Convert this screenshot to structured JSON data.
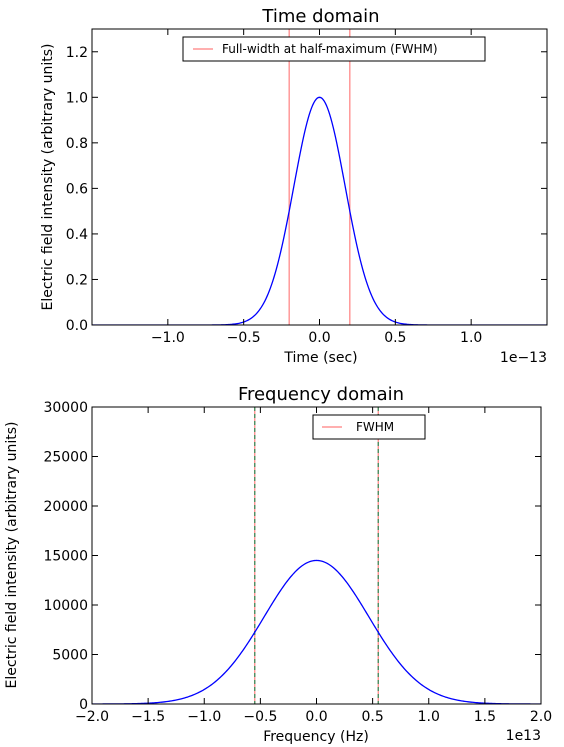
{
  "chart_data": [
    {
      "type": "line",
      "title": "Time domain",
      "xlabel": "Time (sec)",
      "ylabel": "Electric field intensity (arbitrary units)",
      "x_offset_label": "1e−13",
      "xlim": [
        -1.5e-13,
        1.5e-13
      ],
      "ylim": [
        0,
        1.3
      ],
      "xticks": [
        -1e-13,
        -5e-14,
        0,
        5e-14,
        1e-13
      ],
      "xtick_labels": [
        "−1.0",
        "−0.5",
        "0.0",
        "0.5",
        "1.0"
      ],
      "yticks": [
        0,
        0.2,
        0.4,
        0.6,
        0.8,
        1.0,
        1.2
      ],
      "ytick_labels": [
        "0.0",
        "0.2",
        "0.4",
        "0.6",
        "0.8",
        "1.0",
        "1.2"
      ],
      "series": [
        {
          "kind": "gaussian",
          "color": "#0000ff",
          "amplitude": 1.0,
          "center": 0,
          "fwhm": 4e-14
        }
      ],
      "vlines": [
        {
          "x": -2e-14,
          "color": "#ff7f7f"
        },
        {
          "x": 2e-14,
          "color": "#ff7f7f"
        }
      ],
      "legend": {
        "placement": "top-center",
        "entries": [
          {
            "label": "Full-width at half-maximum (FWHM)",
            "color": "#ff7f7f"
          }
        ]
      },
      "grid": false
    },
    {
      "type": "line",
      "title": "Frequency domain",
      "xlabel": "Frequency (Hz)",
      "ylabel": "Electric field intensity (arbitrary units)",
      "x_offset_label": "1e13",
      "xlim": [
        -20000000000000.0,
        20000000000000.0
      ],
      "ylim": [
        0,
        30000
      ],
      "xticks": [
        -20000000000000.0,
        -15000000000000.0,
        -10000000000000.0,
        -5000000000000.0,
        0,
        5000000000000.0,
        10000000000000.0,
        15000000000000.0,
        20000000000000.0
      ],
      "xtick_labels": [
        "−2.0",
        "−1.5",
        "−1.0",
        "−0.5",
        "0.0",
        "0.5",
        "1.0",
        "1.5",
        "2.0"
      ],
      "yticks": [
        0,
        5000,
        10000,
        15000,
        20000,
        25000,
        30000
      ],
      "ytick_labels": [
        "0",
        "5000",
        "10000",
        "15000",
        "20000",
        "25000",
        "30000"
      ],
      "series": [
        {
          "kind": "gaussian",
          "color": "#0000ff",
          "amplitude": 14500,
          "center": 0,
          "fwhm": 11000000000000.0
        }
      ],
      "vlines": [
        {
          "x": -5500000000000.0,
          "color": "#ff7f7f"
        },
        {
          "x": 5500000000000.0,
          "color": "#ff7f7f"
        },
        {
          "x": -5500000000000.0,
          "color": "#2e8b57",
          "dashed": true
        },
        {
          "x": 5500000000000.0,
          "color": "#2e8b57",
          "dashed": true
        }
      ],
      "legend": {
        "placement": "top-center",
        "entries": [
          {
            "label": "FWHM",
            "color": "#ff7f7f"
          }
        ]
      },
      "grid": false
    }
  ]
}
